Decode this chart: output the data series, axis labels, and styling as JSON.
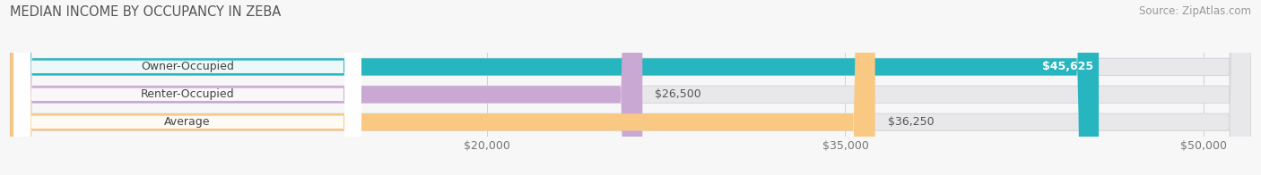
{
  "title": "MEDIAN INCOME BY OCCUPANCY IN ZEBA",
  "source": "Source: ZipAtlas.com",
  "categories": [
    "Owner-Occupied",
    "Renter-Occupied",
    "Average"
  ],
  "values": [
    45625,
    26500,
    36250
  ],
  "value_labels": [
    "$45,625",
    "$26,500",
    "$36,250"
  ],
  "bar_colors": [
    "#27b5bf",
    "#c9a8d4",
    "#f9c882"
  ],
  "bar_track_color": "#e8e8eb",
  "bar_track_border_color": "#d8d8dc",
  "xlim_data": [
    0,
    52000
  ],
  "xstart": 0,
  "xticks": [
    20000,
    35000,
    50000
  ],
  "xtick_labels": [
    "$20,000",
    "$35,000",
    "$50,000"
  ],
  "title_fontsize": 10.5,
  "source_fontsize": 8.5,
  "label_fontsize": 9,
  "value_fontsize": 9,
  "bar_height": 0.62,
  "background_color": "#f7f7f7",
  "label_box_color": "#ffffff",
  "label_color": "#444444",
  "value_color_inside": "#ffffff",
  "value_color_outside": "#555555",
  "grid_color": "#d0d0d0"
}
